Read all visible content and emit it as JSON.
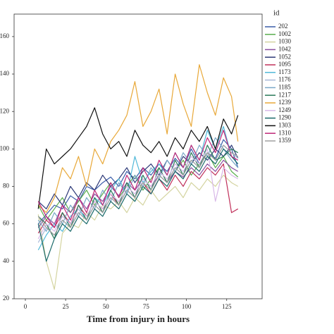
{
  "chart_data": {
    "type": "line",
    "xlabel": "Time from injury in hours",
    "legend_title": "id",
    "legend": "right",
    "xlim": [
      -7,
      147
    ],
    "ylim": [
      20,
      172
    ],
    "xticks": [
      0,
      25,
      50,
      75,
      100,
      125
    ],
    "yticks": [
      20,
      40,
      60,
      80,
      100,
      120,
      140,
      160
    ],
    "x": [
      8,
      13,
      18,
      23,
      28,
      33,
      38,
      43,
      48,
      53,
      58,
      63,
      68,
      73,
      78,
      83,
      88,
      93,
      98,
      103,
      108,
      113,
      118,
      123,
      128,
      132
    ],
    "series": [
      {
        "name": "202",
        "color": "#3a5ca8",
        "values": [
          60,
          65,
          70,
          68,
          75,
          72,
          80,
          78,
          82,
          85,
          80,
          88,
          84,
          90,
          86,
          92,
          88,
          95,
          90,
          100,
          92,
          98,
          95,
          105,
          100,
          90
        ]
      },
      {
        "name": "1002",
        "color": "#5aae4e",
        "values": [
          70,
          62,
          68,
          74,
          66,
          72,
          78,
          70,
          76,
          82,
          74,
          80,
          86,
          78,
          84,
          90,
          82,
          88,
          94,
          86,
          92,
          98,
          90,
          96,
          88,
          85
        ]
      },
      {
        "name": "1030",
        "color": "#d4d4a0",
        "values": [
          65,
          40,
          25,
          55,
          60,
          58,
          66,
          62,
          70,
          68,
          72,
          66,
          74,
          70,
          78,
          72,
          76,
          80,
          74,
          82,
          78,
          84,
          80,
          86,
          82,
          80
        ]
      },
      {
        "name": "1042",
        "color": "#8a4fa0",
        "values": [
          58,
          64,
          60,
          70,
          66,
          74,
          68,
          76,
          72,
          80,
          75,
          82,
          78,
          84,
          80,
          86,
          82,
          88,
          85,
          90,
          86,
          92,
          88,
          94,
          90,
          88
        ]
      },
      {
        "name": "1052",
        "color": "#2e3a78",
        "values": [
          72,
          68,
          76,
          70,
          80,
          74,
          82,
          78,
          86,
          80,
          84,
          90,
          82,
          88,
          92,
          86,
          94,
          88,
          96,
          92,
          98,
          94,
          100,
          96,
          102,
          95
        ]
      },
      {
        "name": "1095",
        "color": "#c0305a",
        "values": [
          55,
          62,
          58,
          66,
          60,
          70,
          64,
          72,
          68,
          76,
          70,
          78,
          74,
          82,
          76,
          84,
          78,
          86,
          80,
          88,
          84,
          90,
          86,
          92,
          66,
          68
        ]
      },
      {
        "name": "1173",
        "color": "#4fb8d8",
        "values": [
          46,
          54,
          60,
          56,
          64,
          68,
          62,
          74,
          70,
          78,
          84,
          76,
          96,
          82,
          88,
          92,
          86,
          98,
          90,
          102,
          94,
          110,
          100,
          112,
          96,
          92
        ]
      },
      {
        "name": "1176",
        "color": "#a8b8d8",
        "values": [
          50,
          58,
          54,
          62,
          58,
          66,
          62,
          70,
          66,
          74,
          70,
          78,
          74,
          82,
          78,
          86,
          82,
          90,
          86,
          94,
          90,
          98,
          94,
          102,
          98,
          95
        ]
      },
      {
        "name": "1185",
        "color": "#7aa8c8",
        "values": [
          62,
          56,
          66,
          60,
          70,
          64,
          74,
          68,
          78,
          72,
          82,
          76,
          86,
          80,
          90,
          84,
          94,
          88,
          98,
          92,
          102,
          96,
          106,
          100,
          94,
          90
        ]
      },
      {
        "name": "1217",
        "color": "#2a7a5a",
        "values": [
          64,
          60,
          52,
          66,
          58,
          70,
          62,
          74,
          66,
          78,
          70,
          82,
          74,
          86,
          78,
          90,
          82,
          94,
          86,
          98,
          90,
          102,
          94,
          96,
          100,
          98
        ]
      },
      {
        "name": "1239",
        "color": "#e8a838",
        "values": [
          70,
          66,
          74,
          90,
          84,
          96,
          80,
          100,
          92,
          104,
          110,
          118,
          136,
          112,
          120,
          132,
          108,
          140,
          124,
          112,
          145,
          130,
          118,
          138,
          128,
          104
        ]
      },
      {
        "name": "1249",
        "color": "#d8b8e8",
        "values": [
          52,
          60,
          56,
          64,
          60,
          68,
          64,
          72,
          68,
          76,
          72,
          80,
          76,
          84,
          80,
          88,
          84,
          92,
          88,
          96,
          92,
          100,
          72,
          90,
          86,
          84
        ]
      },
      {
        "name": "1290",
        "color": "#1a6a6a",
        "values": [
          60,
          40,
          52,
          60,
          56,
          64,
          60,
          68,
          64,
          72,
          68,
          76,
          72,
          80,
          76,
          84,
          80,
          88,
          84,
          92,
          88,
          96,
          92,
          100,
          96,
          92
        ]
      },
      {
        "name": "1303",
        "color": "#101010",
        "values": [
          68,
          100,
          92,
          96,
          100,
          106,
          112,
          122,
          108,
          100,
          104,
          96,
          110,
          102,
          98,
          104,
          96,
          106,
          100,
          110,
          104,
          112,
          100,
          116,
          108,
          118
        ]
      },
      {
        "name": "1310",
        "color": "#c02878",
        "values": [
          72,
          64,
          58,
          70,
          62,
          74,
          66,
          78,
          70,
          82,
          74,
          86,
          78,
          90,
          82,
          94,
          86,
          98,
          90,
          102,
          94,
          106,
          98,
          110,
          96,
          94
        ]
      },
      {
        "name": "1359",
        "color": "#a0a0a0",
        "values": [
          64,
          58,
          54,
          62,
          58,
          66,
          62,
          70,
          66,
          74,
          70,
          78,
          74,
          82,
          78,
          86,
          82,
          90,
          86,
          94,
          90,
          98,
          94,
          102,
          98,
          96
        ]
      }
    ]
  }
}
